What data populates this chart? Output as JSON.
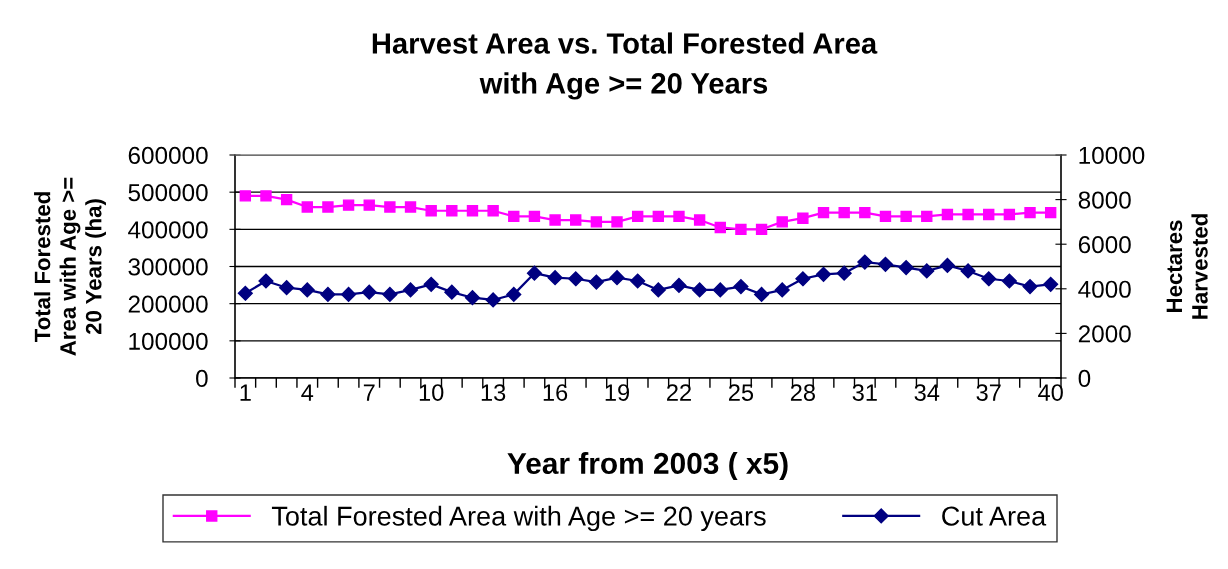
{
  "chart_data": {
    "type": "line",
    "title": "Harvest Area vs. Total Forested Area\nwith Age >= 20 Years",
    "xlabel": "Year from 2003 ( x5)",
    "ylabel": "Total Forested\nArea with Age >=\n20 Years (ha)",
    "y2label": "Hectares\nHarvested",
    "categories": [
      "1",
      null,
      null,
      "4",
      null,
      null,
      "7",
      null,
      null,
      "10",
      null,
      null,
      "13",
      null,
      null,
      "16",
      null,
      null,
      "19",
      null,
      null,
      "22",
      null,
      null,
      "25",
      null,
      null,
      "28",
      null,
      null,
      "31",
      null,
      null,
      "34",
      null,
      null,
      "37",
      null,
      null,
      "40"
    ],
    "series": [
      {
        "name": "Total Forested Area with Age >= 20 years",
        "color": "#ff00ff",
        "marker": "square",
        "axis": "y",
        "values": [
          490000,
          490000,
          480000,
          460000,
          460000,
          465000,
          465000,
          460000,
          460000,
          450000,
          450000,
          450000,
          450000,
          435000,
          435000,
          425000,
          425000,
          420000,
          420000,
          435000,
          435000,
          435000,
          425000,
          405000,
          400000,
          400000,
          420000,
          430000,
          445000,
          445000,
          445000,
          435000,
          435000,
          435000,
          440000,
          440000,
          440000,
          440000,
          445000,
          445000
        ]
      },
      {
        "name": "Cut Area",
        "color": "#000080",
        "marker": "diamond",
        "axis": "y2",
        "values": [
          3800,
          4350,
          4050,
          3950,
          3750,
          3750,
          3850,
          3750,
          3950,
          4200,
          3850,
          3600,
          3500,
          3750,
          4700,
          4500,
          4450,
          4300,
          4500,
          4350,
          3950,
          4150,
          3950,
          3950,
          4100,
          3750,
          3950,
          4450,
          4650,
          4700,
          5200,
          5100,
          4950,
          4800,
          5050,
          4800,
          4450,
          4350,
          4100,
          4200
        ]
      }
    ],
    "ylim": [
      0,
      600000
    ],
    "yticks": [
      0,
      100000,
      200000,
      300000,
      400000,
      500000,
      600000
    ],
    "y2lim": [
      0,
      10000
    ],
    "y2ticks": [
      0,
      2000,
      4000,
      6000,
      8000,
      10000
    ],
    "grid": "y",
    "legend": "bottom",
    "line_style": "solid"
  }
}
